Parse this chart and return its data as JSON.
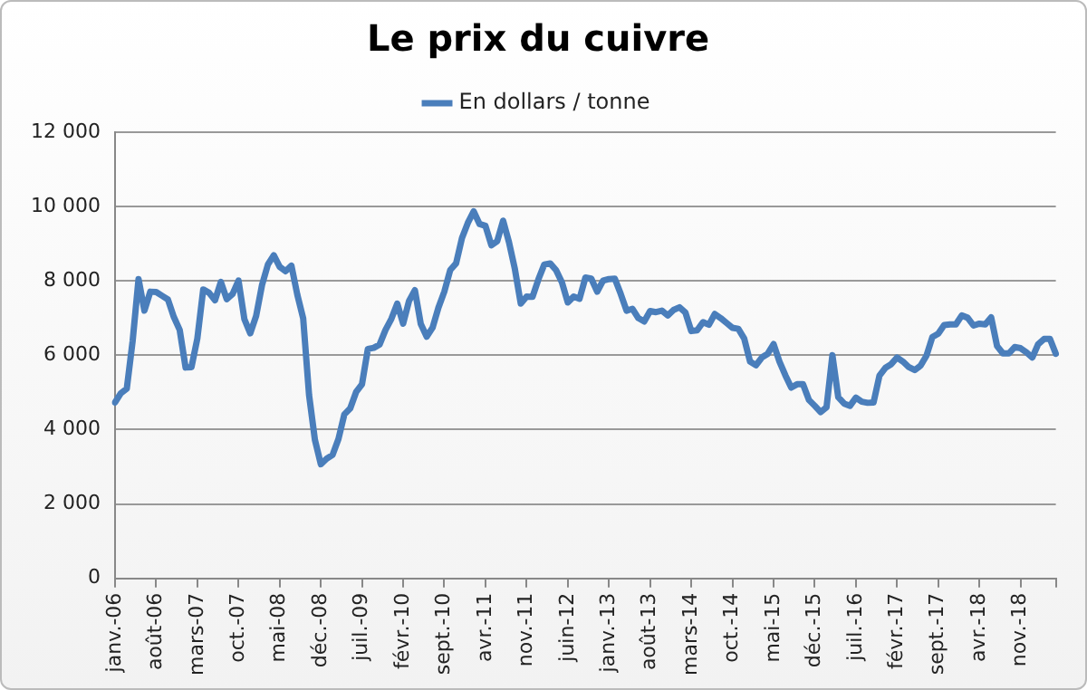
{
  "chart_data": {
    "type": "line",
    "title": "Le prix du cuivre",
    "categories": [
      "janv.-06",
      null,
      null,
      null,
      null,
      null,
      null,
      "août-06",
      null,
      null,
      null,
      null,
      null,
      null,
      "mars-07",
      null,
      null,
      null,
      null,
      null,
      null,
      "oct.-07",
      null,
      null,
      null,
      null,
      null,
      null,
      "mai-08",
      null,
      null,
      null,
      null,
      null,
      null,
      "déc.-08",
      null,
      null,
      null,
      null,
      null,
      null,
      "juil.-09",
      null,
      null,
      null,
      null,
      null,
      null,
      "févr.-10",
      null,
      null,
      null,
      null,
      null,
      null,
      "sept.-10",
      null,
      null,
      null,
      null,
      null,
      null,
      "avr.-11",
      null,
      null,
      null,
      null,
      null,
      null,
      "nov.-11",
      null,
      null,
      null,
      null,
      null,
      null,
      "juin-12",
      null,
      null,
      null,
      null,
      null,
      null,
      "janv.-13",
      null,
      null,
      null,
      null,
      null,
      null,
      "août-13",
      null,
      null,
      null,
      null,
      null,
      null,
      "mars-14",
      null,
      null,
      null,
      null,
      null,
      null,
      "oct.-14",
      null,
      null,
      null,
      null,
      null,
      null,
      "mai-15",
      null,
      null,
      null,
      null,
      null,
      null,
      "déc.-15",
      null,
      null,
      null,
      null,
      null,
      null,
      "juil.-16",
      null,
      null,
      null,
      null,
      null,
      null,
      "févr.-17",
      null,
      null,
      null,
      null,
      null,
      null,
      "sept.-17",
      null,
      null,
      null,
      null,
      null,
      null,
      "avr.-18",
      null,
      null,
      null,
      null,
      null,
      null,
      "nov.-18",
      null,
      null,
      null,
      null,
      null,
      null
    ],
    "series": [
      {
        "name": "En dollars / tonne",
        "color": "#4a7ebb",
        "values": [
          4730,
          4980,
          5100,
          6390,
          8050,
          7200,
          7710,
          7700,
          7600,
          7500,
          7030,
          6680,
          5670,
          5680,
          6450,
          7770,
          7680,
          7480,
          7970,
          7510,
          7650,
          8010,
          6970,
          6590,
          7060,
          7890,
          8440,
          8690,
          8380,
          8260,
          8410,
          7630,
          6990,
          4930,
          3720,
          3070,
          3220,
          3320,
          3750,
          4410,
          4570,
          5010,
          5220,
          6170,
          6200,
          6290,
          6680,
          6980,
          7390,
          6850,
          7460,
          7750,
          6840,
          6500,
          6740,
          7280,
          7710,
          8290,
          8470,
          9150,
          9560,
          9870,
          9530,
          9480,
          8960,
          9070,
          9620,
          9040,
          8320,
          7390,
          7580,
          7570,
          8040,
          8440,
          8470,
          8290,
          7960,
          7420,
          7580,
          7520,
          8090,
          8060,
          7710,
          8010,
          8050,
          8060,
          7650,
          7200,
          7250,
          7000,
          6910,
          7190,
          7160,
          7200,
          7070,
          7220,
          7290,
          7150,
          6650,
          6670,
          6890,
          6820,
          7110,
          7000,
          6870,
          6740,
          6710,
          6450,
          5830,
          5730,
          5940,
          6040,
          6300,
          5830,
          5460,
          5130,
          5220,
          5220,
          4800,
          4640,
          4470,
          4600,
          6000,
          4870,
          4700,
          4640,
          4860,
          4750,
          4720,
          4730,
          5450,
          5660,
          5760,
          5940,
          5830,
          5680,
          5600,
          5720,
          5990,
          6490,
          6580,
          6810,
          6830,
          6830,
          7070,
          7010,
          6800,
          6850,
          6830,
          7020,
          6250,
          6050,
          6050,
          6220,
          6190,
          6080,
          5940,
          6300,
          6440,
          6440,
          6040
        ]
      }
    ],
    "ylim": [
      0,
      12000
    ],
    "yticks": [
      {
        "value": 0,
        "label": "0"
      },
      {
        "value": 2000,
        "label": "2 000"
      },
      {
        "value": 4000,
        "label": "4 000"
      },
      {
        "value": 6000,
        "label": "6 000"
      },
      {
        "value": 8000,
        "label": "8 000"
      },
      {
        "value": 10000,
        "label": "10 000"
      },
      {
        "value": 12000,
        "label": "12 000"
      }
    ],
    "grid": "y",
    "legend": "top",
    "marker": "none",
    "line_style": "solid"
  }
}
